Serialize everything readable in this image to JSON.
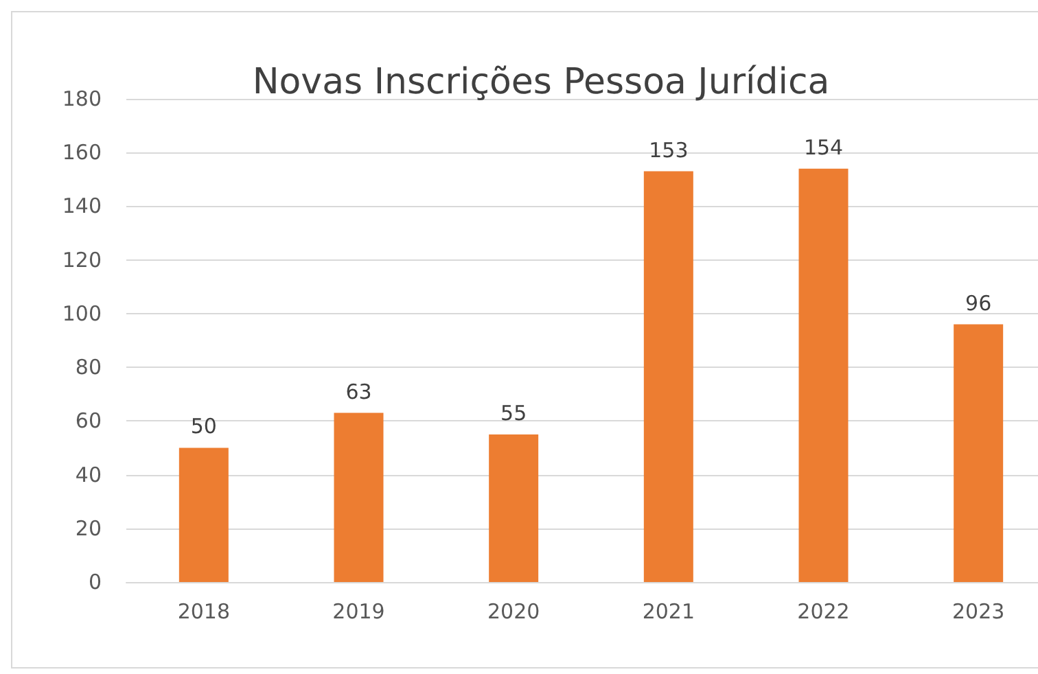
{
  "chart_data": {
    "type": "bar",
    "title": "Novas Inscrições Pessoa Jurídica",
    "categories": [
      "2018",
      "2019",
      "2020",
      "2021",
      "2022",
      "2023"
    ],
    "values": [
      50,
      63,
      55,
      153,
      154,
      96
    ],
    "color": "#ed7d31",
    "ylim": [
      0,
      180
    ],
    "yticks": [
      0,
      20,
      40,
      60,
      80,
      100,
      120,
      140,
      160,
      180
    ],
    "grid": "y",
    "data_labels": true
  }
}
